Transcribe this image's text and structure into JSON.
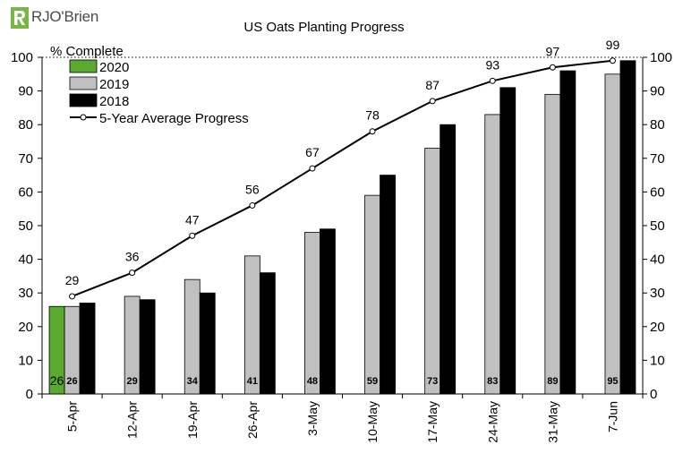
{
  "logo": {
    "text": "RJO'Brien"
  },
  "colors": {
    "s2020": "#5aaa32",
    "s2019": "#c0c0c0",
    "s2018": "#000000",
    "avg": "#000000"
  },
  "chart_data": {
    "type": "bar",
    "title": "US Oats Planting Progress",
    "ylabel": "% Complete",
    "ylim": [
      0,
      100
    ],
    "yticks": [
      0,
      10,
      20,
      30,
      40,
      50,
      60,
      70,
      80,
      90,
      100
    ],
    "grid": "dotted horizontal at 100",
    "legend_position": "top-left",
    "categories": [
      "5-Apr",
      "12-Apr",
      "19-Apr",
      "26-Apr",
      "3-May",
      "10-May",
      "17-May",
      "24-May",
      "31-May",
      "7-Jun"
    ],
    "series": [
      {
        "name": "2020",
        "type": "bar",
        "values": [
          26,
          null,
          null,
          null,
          null,
          null,
          null,
          null,
          null,
          null
        ]
      },
      {
        "name": "2019",
        "type": "bar",
        "values": [
          26,
          29,
          34,
          41,
          48,
          59,
          73,
          83,
          89,
          95
        ]
      },
      {
        "name": "2018",
        "type": "bar",
        "values": [
          27,
          28,
          30,
          36,
          49,
          65,
          80,
          91,
          96,
          99
        ]
      },
      {
        "name": "5-Year Average Progress",
        "type": "line",
        "values": [
          29,
          36,
          47,
          56,
          67,
          78,
          87,
          93,
          97,
          99
        ]
      }
    ],
    "bar_labels": {
      "2020": [
        "26",
        "",
        "",
        "",
        "",
        "",
        "",
        "",
        "",
        ""
      ],
      "2019": [
        "26",
        "29",
        "34",
        "41",
        "48",
        "59",
        "73",
        "83",
        "89",
        "95"
      ]
    },
    "line_labels": [
      "29",
      "36",
      "47",
      "56",
      "67",
      "78",
      "87",
      "93",
      "97",
      "99"
    ]
  }
}
